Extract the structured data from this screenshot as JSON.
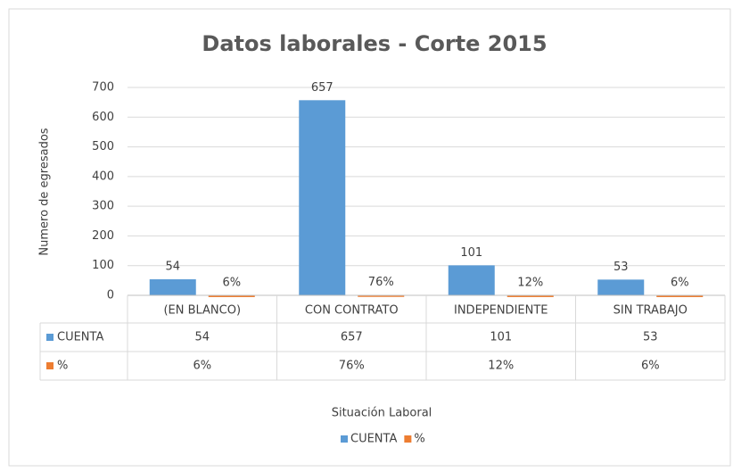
{
  "chart_data": {
    "type": "bar",
    "title": "Datos laborales - Corte 2015",
    "x_label": "Situación Laboral",
    "y_label": "Numero de egresados",
    "categories": [
      "(EN BLANCO)",
      "CON CONTRATO",
      "INDEPENDIENTE",
      "SIN TRABAJO"
    ],
    "series": [
      {
        "name": "CUENTA",
        "color": "#5b9bd5",
        "values": [
          54,
          657,
          101,
          53
        ]
      },
      {
        "name": "%",
        "color": "#ed7d31",
        "values": [
          0.06,
          0.76,
          0.12,
          0.06
        ],
        "value_labels": [
          "6%",
          "76%",
          "12%",
          "6%"
        ]
      }
    ],
    "ylim": [
      0,
      700
    ],
    "yticks": [
      0,
      100,
      200,
      300,
      400,
      500,
      600,
      700
    ],
    "grid": true,
    "legend": "bottom",
    "data_table": true
  }
}
